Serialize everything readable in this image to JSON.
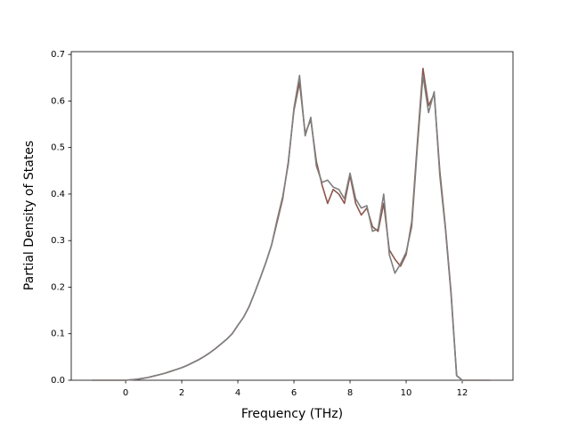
{
  "chart_data": {
    "type": "line",
    "xlabel": "Frequency (THz)",
    "ylabel": "Partial Density of States",
    "x": [
      -1.2,
      -1.0,
      -0.8,
      -0.6,
      -0.4,
      -0.2,
      0.0,
      0.2,
      0.4,
      0.6,
      0.8,
      1.0,
      1.2,
      1.4,
      1.6,
      1.8,
      2.0,
      2.2,
      2.4,
      2.6,
      2.8,
      3.0,
      3.2,
      3.4,
      3.6,
      3.8,
      4.0,
      4.2,
      4.4,
      4.6,
      4.8,
      5.0,
      5.2,
      5.4,
      5.6,
      5.8,
      6.0,
      6.2,
      6.4,
      6.6,
      6.8,
      7.0,
      7.2,
      7.4,
      7.6,
      7.8,
      8.0,
      8.2,
      8.4,
      8.6,
      8.8,
      9.0,
      9.2,
      9.4,
      9.6,
      9.8,
      10.0,
      10.2,
      10.4,
      10.6,
      10.8,
      11.0,
      11.2,
      11.4,
      11.6,
      11.8,
      12.0,
      12.2,
      12.4,
      12.6,
      12.8,
      13.0
    ],
    "series": [
      {
        "name": "brown",
        "color": "#8c564b",
        "values": [
          0,
          0,
          0,
          0,
          0,
          0,
          0,
          0.001,
          0.002,
          0.004,
          0.006,
          0.009,
          0.012,
          0.015,
          0.019,
          0.023,
          0.027,
          0.032,
          0.038,
          0.044,
          0.051,
          0.059,
          0.068,
          0.078,
          0.088,
          0.1,
          0.118,
          0.135,
          0.158,
          0.188,
          0.22,
          0.253,
          0.29,
          0.34,
          0.39,
          0.47,
          0.58,
          0.64,
          0.53,
          0.56,
          0.47,
          0.42,
          0.38,
          0.41,
          0.4,
          0.38,
          0.44,
          0.38,
          0.355,
          0.37,
          0.33,
          0.32,
          0.38,
          0.28,
          0.26,
          0.245,
          0.27,
          0.34,
          0.51,
          0.67,
          0.59,
          0.615,
          0.45,
          0.33,
          0.19,
          0.01,
          0,
          0,
          0,
          0,
          0,
          0
        ]
      },
      {
        "name": "gray",
        "color": "#7f7f7f",
        "values": [
          0,
          0,
          0,
          0,
          0,
          0,
          0,
          0.001,
          0.002,
          0.004,
          0.006,
          0.009,
          0.012,
          0.015,
          0.019,
          0.023,
          0.027,
          0.032,
          0.038,
          0.044,
          0.051,
          0.059,
          0.068,
          0.078,
          0.088,
          0.1,
          0.118,
          0.135,
          0.158,
          0.188,
          0.22,
          0.253,
          0.29,
          0.345,
          0.395,
          0.465,
          0.585,
          0.655,
          0.525,
          0.565,
          0.46,
          0.425,
          0.43,
          0.415,
          0.41,
          0.39,
          0.445,
          0.39,
          0.37,
          0.375,
          0.32,
          0.325,
          0.4,
          0.27,
          0.23,
          0.25,
          0.275,
          0.33,
          0.5,
          0.655,
          0.575,
          0.62,
          0.44,
          0.325,
          0.185,
          0.01,
          0,
          0,
          0,
          0,
          0,
          0
        ]
      }
    ],
    "xlim": [
      -1.94,
      13.81
    ],
    "ylim": [
      0,
      0.706
    ],
    "xticks": [
      0,
      2,
      4,
      6,
      8,
      10,
      12
    ],
    "yticks": [
      {
        "value": 0,
        "label": "0.0"
      },
      0.1,
      0.2,
      0.3,
      0.4,
      0.5,
      0.6,
      0.7
    ]
  }
}
